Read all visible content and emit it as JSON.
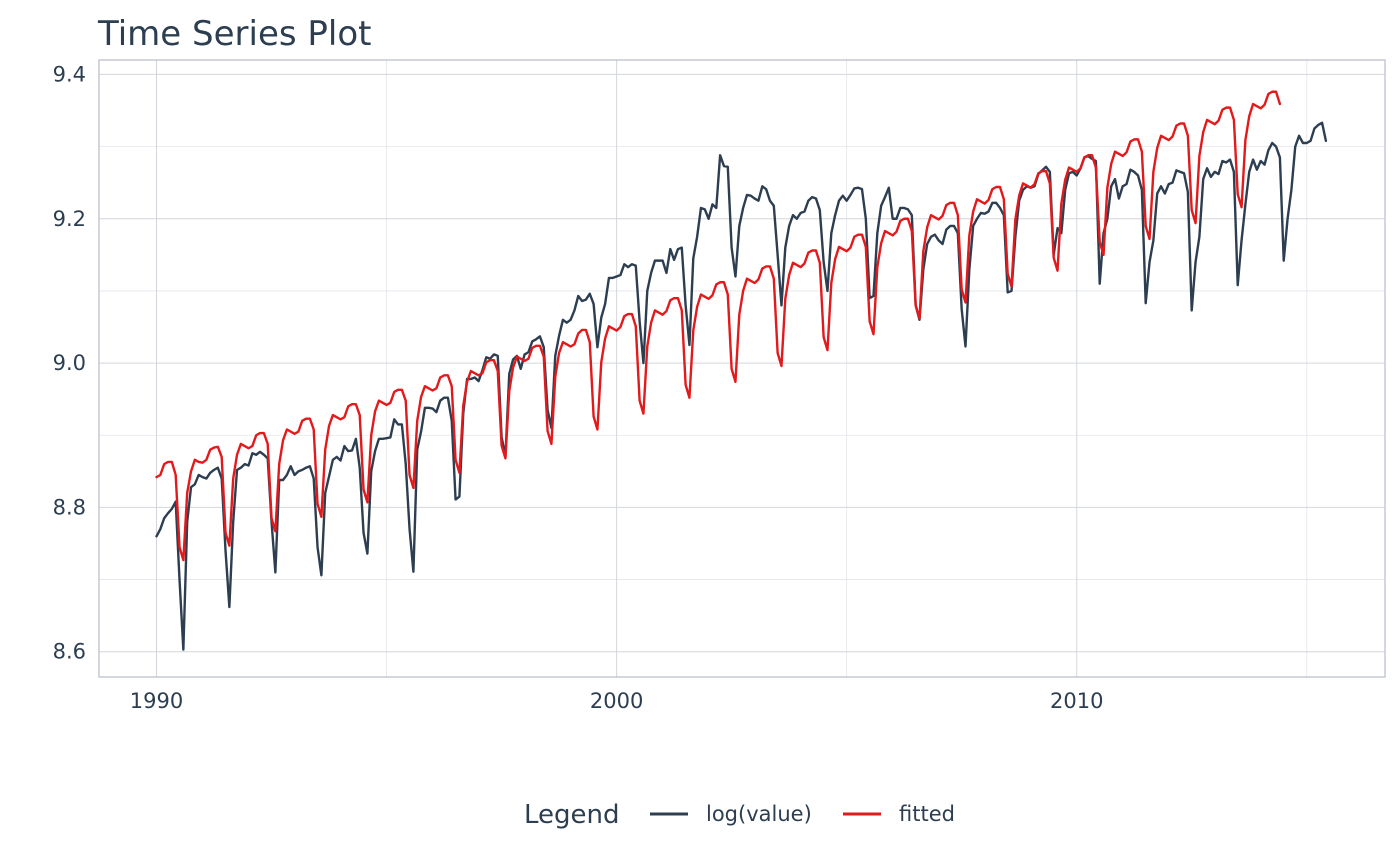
{
  "chart_data": {
    "type": "line",
    "title": "Time Series Plot",
    "xlabel": "",
    "ylabel": "",
    "xlim": [
      1988.75,
      2016.7
    ],
    "ylim": [
      8.565,
      9.42
    ],
    "x_ticks": [
      1990,
      2000,
      2010
    ],
    "x_tick_labels": [
      "1990",
      "2000",
      "2010"
    ],
    "y_ticks": [
      8.6,
      8.8,
      9.0,
      9.2,
      9.4
    ],
    "y_tick_labels": [
      "8.6",
      "8.8",
      "9.0",
      "9.2",
      "9.4"
    ],
    "grid": true,
    "legend": {
      "title": "Legend",
      "position": "bottom",
      "entries": [
        {
          "label": "log(value)",
          "color": "#2c3e50"
        },
        {
          "label": "fitted",
          "color": "#e31a1c"
        }
      ]
    },
    "x_start": 1990.0,
    "x_step": 0.08333,
    "series": [
      {
        "name": "log(value)",
        "color": "#2c3e50",
        "values": [
          8.76,
          8.77,
          8.785,
          8.792,
          8.798,
          8.808,
          8.7,
          8.603,
          8.78,
          8.828,
          8.832,
          8.845,
          8.842,
          8.84,
          8.848,
          8.852,
          8.855,
          8.84,
          8.74,
          8.662,
          8.78,
          8.852,
          8.855,
          8.86,
          8.858,
          8.875,
          8.873,
          8.877,
          8.873,
          8.868,
          8.78,
          8.71,
          8.838,
          8.838,
          8.845,
          8.857,
          8.845,
          8.85,
          8.852,
          8.855,
          8.857,
          8.84,
          8.745,
          8.706,
          8.82,
          8.843,
          8.866,
          8.87,
          8.865,
          8.885,
          8.878,
          8.879,
          8.895,
          8.855,
          8.765,
          8.736,
          8.85,
          8.878,
          8.895,
          8.895,
          8.896,
          8.897,
          8.922,
          8.915,
          8.915,
          8.86,
          8.77,
          8.711,
          8.88,
          8.905,
          8.938,
          8.938,
          8.937,
          8.932,
          8.948,
          8.952,
          8.952,
          8.92,
          8.811,
          8.815,
          8.93,
          8.978,
          8.978,
          8.98,
          8.975,
          8.99,
          9.008,
          9.006,
          9.012,
          9.01,
          8.898,
          8.87,
          8.985,
          9.005,
          9.01,
          8.992,
          9.012,
          9.015,
          9.03,
          9.033,
          9.037,
          9.022,
          8.935,
          8.91,
          9.01,
          9.038,
          9.06,
          9.056,
          9.06,
          9.073,
          9.093,
          9.086,
          9.088,
          9.096,
          9.082,
          9.022,
          9.063,
          9.082,
          9.118,
          9.118,
          9.12,
          9.122,
          9.137,
          9.133,
          9.137,
          9.135,
          9.058,
          9.0,
          9.1,
          9.125,
          9.142,
          9.142,
          9.142,
          9.125,
          9.158,
          9.143,
          9.158,
          9.16,
          9.08,
          9.025,
          9.145,
          9.175,
          9.215,
          9.213,
          9.2,
          9.22,
          9.215,
          9.288,
          9.273,
          9.272,
          9.16,
          9.12,
          9.19,
          9.215,
          9.233,
          9.232,
          9.228,
          9.225,
          9.245,
          9.241,
          9.225,
          9.218,
          9.15,
          9.08,
          9.16,
          9.19,
          9.205,
          9.2,
          9.208,
          9.21,
          9.225,
          9.23,
          9.228,
          9.212,
          9.14,
          9.1,
          9.18,
          9.205,
          9.225,
          9.232,
          9.225,
          9.233,
          9.242,
          9.243,
          9.241,
          9.2,
          9.09,
          9.093,
          9.18,
          9.218,
          9.23,
          9.243,
          9.2,
          9.2,
          9.215,
          9.215,
          9.213,
          9.205,
          9.08,
          9.06,
          9.13,
          9.165,
          9.175,
          9.178,
          9.17,
          9.165,
          9.185,
          9.19,
          9.19,
          9.18,
          9.075,
          9.023,
          9.13,
          9.19,
          9.2,
          9.208,
          9.207,
          9.21,
          9.222,
          9.222,
          9.215,
          9.205,
          9.098,
          9.1,
          9.175,
          9.225,
          9.24,
          9.245,
          9.243,
          9.245,
          9.262,
          9.267,
          9.272,
          9.265,
          9.15,
          9.187,
          9.18,
          9.24,
          9.263,
          9.265,
          9.26,
          9.27,
          9.285,
          9.287,
          9.283,
          9.28,
          9.11,
          9.18,
          9.2,
          9.245,
          9.255,
          9.228,
          9.245,
          9.248,
          9.268,
          9.265,
          9.26,
          9.24,
          9.083,
          9.14,
          9.17,
          9.235,
          9.245,
          9.235,
          9.248,
          9.25,
          9.267,
          9.265,
          9.263,
          9.237,
          9.073,
          9.14,
          9.175,
          9.255,
          9.27,
          9.258,
          9.265,
          9.262,
          9.28,
          9.278,
          9.282,
          9.265,
          9.108,
          9.17,
          9.22,
          9.265,
          9.282,
          9.268,
          9.28,
          9.275,
          9.295,
          9.305,
          9.3,
          9.285,
          9.142,
          9.2,
          9.24,
          9.3,
          9.315,
          9.305,
          9.305,
          9.308,
          9.325,
          9.33,
          9.333,
          9.308
        ]
      },
      {
        "name": "fitted",
        "color": "#e31a1c",
        "values": [
          8.842,
          8.845,
          8.86,
          8.863,
          8.863,
          8.845,
          8.745,
          8.727,
          8.82,
          8.85,
          8.866,
          8.863,
          8.862,
          8.866,
          8.88,
          8.883,
          8.884,
          8.87,
          8.765,
          8.747,
          8.84,
          8.873,
          8.888,
          8.885,
          8.882,
          8.885,
          8.9,
          8.903,
          8.903,
          8.888,
          8.785,
          8.767,
          8.86,
          8.893,
          8.908,
          8.905,
          8.902,
          8.905,
          8.92,
          8.923,
          8.923,
          8.908,
          8.805,
          8.787,
          8.88,
          8.913,
          8.928,
          8.925,
          8.922,
          8.925,
          8.94,
          8.943,
          8.943,
          8.928,
          8.825,
          8.807,
          8.9,
          8.933,
          8.948,
          8.945,
          8.942,
          8.945,
          8.96,
          8.963,
          8.963,
          8.948,
          8.845,
          8.827,
          8.92,
          8.953,
          8.968,
          8.965,
          8.962,
          8.965,
          8.98,
          8.983,
          8.983,
          8.968,
          8.866,
          8.848,
          8.941,
          8.974,
          8.989,
          8.986,
          8.983,
          8.986,
          9.001,
          9.004,
          9.004,
          8.989,
          8.886,
          8.868,
          8.961,
          8.994,
          9.009,
          9.006,
          9.003,
          9.006,
          9.021,
          9.024,
          9.024,
          9.009,
          8.906,
          8.888,
          8.981,
          9.014,
          9.029,
          9.026,
          9.023,
          9.026,
          9.041,
          9.046,
          9.046,
          9.029,
          8.926,
          8.908,
          9.001,
          9.034,
          9.051,
          9.048,
          9.045,
          9.05,
          9.065,
          9.068,
          9.068,
          9.051,
          8.948,
          8.93,
          9.023,
          9.056,
          9.073,
          9.07,
          9.067,
          9.072,
          9.087,
          9.09,
          9.09,
          9.073,
          8.97,
          8.952,
          9.045,
          9.078,
          9.095,
          9.092,
          9.089,
          9.094,
          9.109,
          9.112,
          9.112,
          9.095,
          8.992,
          8.974,
          9.067,
          9.1,
          9.117,
          9.114,
          9.111,
          9.116,
          9.131,
          9.134,
          9.134,
          9.117,
          9.014,
          8.996,
          9.089,
          9.122,
          9.139,
          9.136,
          9.133,
          9.138,
          9.153,
          9.156,
          9.156,
          9.139,
          9.036,
          9.018,
          9.111,
          9.144,
          9.161,
          9.158,
          9.155,
          9.16,
          9.175,
          9.178,
          9.178,
          9.161,
          9.058,
          9.04,
          9.133,
          9.166,
          9.183,
          9.18,
          9.177,
          9.182,
          9.197,
          9.2,
          9.2,
          9.183,
          9.08,
          9.062,
          9.155,
          9.188,
          9.205,
          9.202,
          9.199,
          9.204,
          9.219,
          9.222,
          9.222,
          9.205,
          9.102,
          9.084,
          9.177,
          9.21,
          9.227,
          9.224,
          9.221,
          9.226,
          9.241,
          9.244,
          9.244,
          9.227,
          9.124,
          9.106,
          9.199,
          9.232,
          9.249,
          9.246,
          9.243,
          9.248,
          9.263,
          9.266,
          9.266,
          9.249,
          9.146,
          9.128,
          9.221,
          9.254,
          9.271,
          9.268,
          9.265,
          9.27,
          9.285,
          9.288,
          9.288,
          9.271,
          9.168,
          9.15,
          9.243,
          9.276,
          9.293,
          9.29,
          9.287,
          9.292,
          9.307,
          9.31,
          9.31,
          9.293,
          9.19,
          9.172,
          9.265,
          9.298,
          9.315,
          9.312,
          9.309,
          9.314,
          9.329,
          9.332,
          9.332,
          9.315,
          9.212,
          9.194,
          9.287,
          9.32,
          9.337,
          9.334,
          9.331,
          9.336,
          9.351,
          9.354,
          9.354,
          9.337,
          9.234,
          9.216,
          9.309,
          9.342,
          9.359,
          9.356,
          9.353,
          9.358,
          9.373,
          9.376,
          9.376,
          9.359
        ]
      }
    ]
  }
}
